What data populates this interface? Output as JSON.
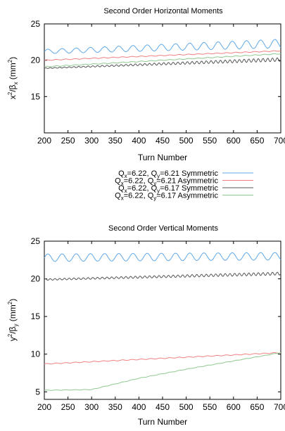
{
  "legend": [
    {
      "q": "Q",
      "qx": "x",
      "eq1": "=6.22, ",
      "qy": "y",
      "eq2": "=6.21",
      "type": "Symmetric",
      "color": "#5fa8e8"
    },
    {
      "q": "Q",
      "qx": "x",
      "eq1": "=6.22, ",
      "qy": "y",
      "eq2": "=6.21",
      "type": "Asymmetric",
      "color": "#f08080"
    },
    {
      "q": "Q",
      "qx": "x",
      "eq1": "=6.22, ",
      "qy": "y",
      "eq2": "=6.17",
      "type": "Symmetric",
      "color": "#555555"
    },
    {
      "q": "Q",
      "qx": "x",
      "eq1": "=6.22, ",
      "qy": "y",
      "eq2": "=6.17",
      "type": "Asymmetric",
      "color": "#8fc98f"
    }
  ],
  "chart_data": [
    {
      "type": "line",
      "title": "Second Order Horizontal Moments",
      "xlabel": "Turn Number",
      "ylabel": {
        "v": "x",
        "sup": "2",
        "slash": "/β",
        "sub": "x",
        "unit": " (mm",
        "unitsup": "2",
        "close": ")"
      },
      "xlim": [
        200,
        700
      ],
      "ylim": [
        10,
        25
      ],
      "xticks": [
        200,
        250,
        300,
        350,
        400,
        450,
        500,
        550,
        600,
        650,
        700
      ],
      "yticks": [
        15,
        20,
        25
      ],
      "series": [
        {
          "name": "Qx=6.22, Qy=6.21 Symmetric",
          "color": "#5fa8e8",
          "trend": [
            [
              200,
              21.2
            ],
            [
              700,
              22.3
            ]
          ],
          "amplitude": [
            0.3,
            0.6
          ],
          "period": 30
        },
        {
          "name": "Qx=6.22, Qy=6.21 Asymmetric",
          "color": "#f08080",
          "trend": [
            [
              200,
              20.0
            ],
            [
              700,
              21.3
            ]
          ],
          "amplitude": [
            0.05,
            0.05
          ],
          "period": 20
        },
        {
          "name": "Qx=6.22, Qy=6.17 Symmetric",
          "color": "#555555",
          "trend": [
            [
              200,
              18.9
            ],
            [
              700,
              20.1
            ]
          ],
          "amplitude": [
            0.05,
            0.25
          ],
          "period": 10
        },
        {
          "name": "Qx=6.22, Qy=6.17 Asymmetric",
          "color": "#8fc98f",
          "trend": [
            [
              200,
              19.1
            ],
            [
              700,
              20.9
            ]
          ],
          "amplitude": [
            0.05,
            0.05
          ],
          "period": 20
        }
      ]
    },
    {
      "type": "line",
      "title": "Second Order Vertical Moments",
      "xlabel": "Turn Number",
      "ylabel": {
        "v": "y",
        "sup": "2",
        "slash": "/β",
        "sub": "y",
        "unit": " (mm",
        "unitsup": "2",
        "close": ")"
      },
      "xlim": [
        200,
        700
      ],
      "ylim": [
        4,
        25
      ],
      "xticks": [
        200,
        250,
        300,
        350,
        400,
        450,
        500,
        550,
        600,
        650,
        700
      ],
      "yticks": [
        5,
        10,
        15,
        20,
        25
      ],
      "series": [
        {
          "name": "Qx=6.22, Qy=6.21 Symmetric",
          "color": "#5fa8e8",
          "trend": [
            [
              200,
              22.8
            ],
            [
              700,
              23.0
            ]
          ],
          "amplitude": [
            0.5,
            0.5
          ],
          "period": 30
        },
        {
          "name": "Qx=6.22, Qy=6.21 Asymmetric",
          "color": "#f08080",
          "trend": [
            [
              200,
              8.7
            ],
            [
              700,
              10.2
            ]
          ],
          "amplitude": [
            0.05,
            0.05
          ],
          "period": 20
        },
        {
          "name": "Qx=6.22, Qy=6.17 Symmetric",
          "color": "#555555",
          "trend": [
            [
              200,
              19.9
            ],
            [
              700,
              20.7
            ]
          ],
          "amplitude": [
            0.1,
            0.2
          ],
          "period": 10
        },
        {
          "name": "Qx=6.22, Qy=6.17 Asymmetric",
          "color": "#8fc98f",
          "trend": [
            [
              200,
              5.2
            ],
            [
              300,
              5.3
            ],
            [
              400,
              6.8
            ],
            [
              500,
              8.0
            ],
            [
              600,
              9.1
            ],
            [
              700,
              10.2
            ]
          ],
          "amplitude": [
            0.03,
            0.03
          ],
          "period": 20
        }
      ]
    }
  ]
}
